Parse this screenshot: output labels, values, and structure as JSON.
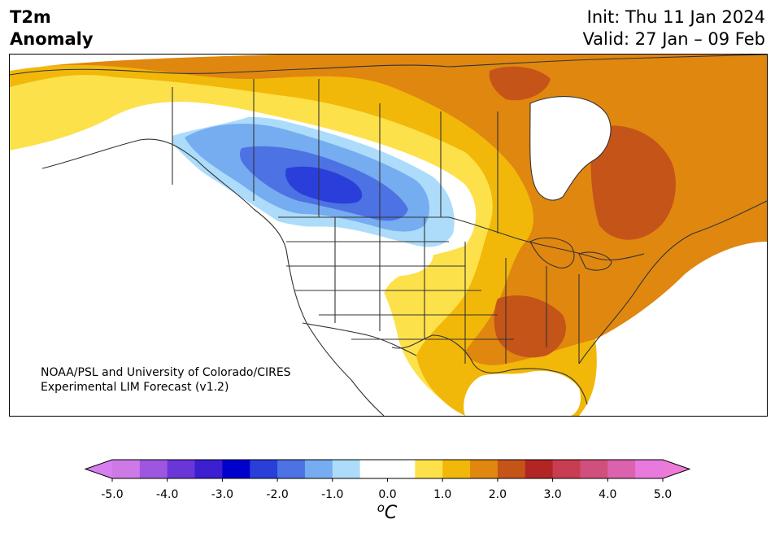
{
  "header": {
    "title_line1": "T2m",
    "title_line2": "Anomaly",
    "init": "Init: Thu 11 Jan 2024",
    "valid": "Valid: 27 Jan – 09 Feb"
  },
  "credit": {
    "line1": "NOAA/PSL and University of Colorado/CIRES",
    "line2": "Experimental LIM Forecast (v1.2)"
  },
  "colorbar": {
    "unit_base": "o",
    "unit_letter": "C",
    "ticks": [
      "-5.0",
      "-4.0",
      "-3.0",
      "-2.0",
      "-1.0",
      "0.0",
      "1.0",
      "2.0",
      "3.0",
      "4.0",
      "5.0"
    ],
    "colors": [
      "#cd79e6",
      "#9c56e0",
      "#6a36d8",
      "#3b1fd0",
      "#0000cc",
      "#2a3fd9",
      "#4d72e3",
      "#76acf0",
      "#acdcfa",
      "#ffffff",
      "#ffffff",
      "#fde14b",
      "#f1b80a",
      "#e0870f",
      "#c55419",
      "#b32525",
      "#c83d52",
      "#d14f7d",
      "#db62ad",
      "#e879dd"
    ],
    "under_color": "#d77ff0",
    "over_color": "#ee7ad8"
  },
  "palette": {
    "yellow": "#fde14b",
    "gold": "#f1b80a",
    "orange": "#e0870f",
    "rust": "#c55419",
    "pale_blue": "#acdcfa",
    "light_blue": "#76acf0",
    "mid_blue": "#4d72e3",
    "deep_blue": "#2a3fd9",
    "border": "#333333"
  }
}
